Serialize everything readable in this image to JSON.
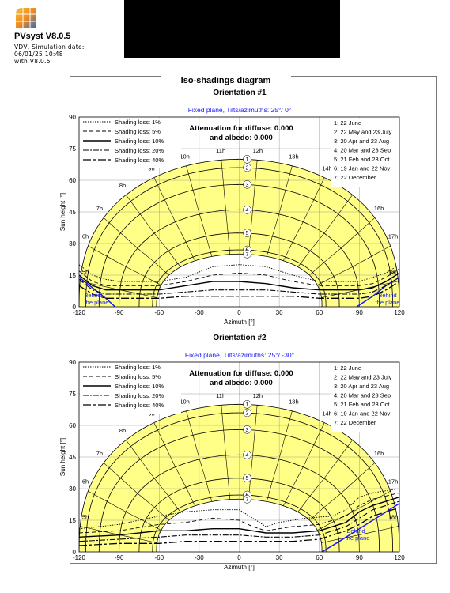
{
  "header": {
    "app_title": "PVsyst V8.0.5",
    "line1": "VDV, Simulation date:",
    "line2": "06/01/25 10:48",
    "line3": "with V8.0.5"
  },
  "page_title": "Iso-shadings diagram",
  "chart_data": [
    {
      "type": "line",
      "title": "Orientation #1",
      "subtitle": "Fixed plane, Tilts/azimuths: 25°/ 0°",
      "attenuation": "Attenuation for diffuse: 0.000",
      "albedo": "and albedo: 0.000",
      "xlabel": "Azimuth [°]",
      "ylabel": "Sun height [°]",
      "xlim": [
        -120,
        120
      ],
      "ylim": [
        0,
        90
      ],
      "xticks": [
        "-120",
        "-90",
        "-60",
        "-30",
        "0",
        "30",
        "60",
        "90",
        "120"
      ],
      "yticks": [
        "0",
        "15",
        "30",
        "45",
        "60",
        "75",
        "90"
      ],
      "behind_label": [
        "Behind",
        "the plane"
      ],
      "hour_labels": [
        "5h",
        "6h",
        "7h",
        "8h",
        "9h",
        "10h",
        "11h",
        "12h",
        "13h",
        "14h",
        "15h",
        "16h",
        "17h",
        "18h"
      ],
      "shading_legend": [
        "Shading loss: 1%",
        "Shading loss: 5%",
        "Shading loss: 10%",
        "Shading loss: 20%",
        "Shading loss: 40%"
      ],
      "date_legend": [
        "1: 22 June",
        "2: 22 May and 23 July",
        "3: 20 Apr and 23 Aug",
        "4: 20 Mar and 23 Sep",
        "5: 21 Feb and 23 Oct",
        "6: 19 Jan and 22 Nov",
        "7: 22 December"
      ],
      "sun_paths": [
        {
          "name": "1",
          "peak": 70,
          "az_set": 120
        },
        {
          "name": "2",
          "peak": 66,
          "az_set": 115
        },
        {
          "name": "3",
          "peak": 58,
          "az_set": 105
        },
        {
          "name": "4",
          "peak": 46,
          "az_set": 90
        },
        {
          "name": "5",
          "peak": 35,
          "az_set": 75
        },
        {
          "name": "6",
          "peak": 27,
          "az_set": 65
        },
        {
          "name": "7",
          "peak": 25,
          "az_set": 62
        }
      ],
      "shading_series": [
        {
          "name": "Shading loss: 1%",
          "points": [
            [
              -120,
              20
            ],
            [
              -110,
              15
            ],
            [
              -100,
              13
            ],
            [
              -90,
              12
            ],
            [
              -60,
              12
            ],
            [
              -40,
              14
            ],
            [
              -20,
              19
            ],
            [
              0,
              20
            ],
            [
              20,
              19
            ],
            [
              40,
              15
            ],
            [
              60,
              12
            ],
            [
              90,
              12
            ],
            [
              100,
              14
            ],
            [
              110,
              16
            ],
            [
              120,
              20
            ]
          ]
        },
        {
          "name": "Shading loss: 5%",
          "points": [
            [
              -120,
              17
            ],
            [
              -110,
              12
            ],
            [
              -100,
              10
            ],
            [
              -90,
              10
            ],
            [
              -60,
              10
            ],
            [
              -40,
              12
            ],
            [
              -20,
              15
            ],
            [
              0,
              16
            ],
            [
              20,
              15
            ],
            [
              40,
              12
            ],
            [
              60,
              10
            ],
            [
              90,
              10
            ],
            [
              100,
              11
            ],
            [
              110,
              14
            ],
            [
              120,
              18
            ]
          ]
        },
        {
          "name": "Shading loss: 10%",
          "points": [
            [
              -120,
              15
            ],
            [
              -110,
              10
            ],
            [
              -100,
              8
            ],
            [
              -90,
              8
            ],
            [
              -60,
              8
            ],
            [
              -40,
              10
            ],
            [
              -20,
              12
            ],
            [
              0,
              12
            ],
            [
              20,
              11
            ],
            [
              40,
              9
            ],
            [
              60,
              8
            ],
            [
              90,
              8
            ],
            [
              100,
              9
            ],
            [
              110,
              12
            ],
            [
              120,
              16
            ]
          ]
        },
        {
          "name": "Shading loss: 20%",
          "points": [
            [
              -120,
              13
            ],
            [
              -110,
              8
            ],
            [
              -100,
              6
            ],
            [
              -90,
              6
            ],
            [
              -60,
              6
            ],
            [
              -40,
              7
            ],
            [
              -20,
              8
            ],
            [
              0,
              8
            ],
            [
              20,
              8
            ],
            [
              40,
              7
            ],
            [
              60,
              6
            ],
            [
              90,
              6
            ],
            [
              100,
              7
            ],
            [
              110,
              10
            ],
            [
              120,
              14
            ]
          ]
        },
        {
          "name": "Shading loss: 40%",
          "points": [
            [
              -120,
              10
            ],
            [
              -110,
              6
            ],
            [
              -100,
              4
            ],
            [
              -90,
              4
            ],
            [
              -60,
              4
            ],
            [
              -40,
              5
            ],
            [
              -20,
              5
            ],
            [
              0,
              5
            ],
            [
              20,
              5
            ],
            [
              40,
              5
            ],
            [
              60,
              4
            ],
            [
              90,
              4
            ],
            [
              100,
              5
            ],
            [
              110,
              8
            ],
            [
              120,
              12
            ]
          ]
        }
      ],
      "plane_boundary": [
        [
          [
            -120,
            14
          ],
          [
            -110,
            9
          ],
          [
            -100,
            4
          ],
          [
            -93,
            0
          ]
        ],
        [
          [
            88,
            0
          ],
          [
            100,
            5
          ],
          [
            110,
            10
          ],
          [
            120,
            14
          ]
        ]
      ]
    },
    {
      "type": "line",
      "title": "Orientation #2",
      "subtitle": "Fixed plane, Tilts/azimuths: 25°/ -30°",
      "attenuation": "Attenuation for diffuse: 0.000",
      "albedo": "and albedo: 0.000",
      "xlabel": "Azimuth [°]",
      "ylabel": "Sun height [°]",
      "xlim": [
        -120,
        120
      ],
      "ylim": [
        0,
        90
      ],
      "xticks": [
        "-120",
        "-90",
        "-60",
        "-30",
        "0",
        "30",
        "60",
        "90",
        "120"
      ],
      "yticks": [
        "0",
        "15",
        "30",
        "45",
        "60",
        "75",
        "90"
      ],
      "behind_label": [
        "Behind",
        "the plane"
      ],
      "hour_labels": [
        "5h",
        "6h",
        "7h",
        "8h",
        "9h",
        "10h",
        "11h",
        "12h",
        "13h",
        "14h",
        "15h",
        "16h",
        "17h",
        "18h"
      ],
      "shading_legend": [
        "Shading loss: 1%",
        "Shading loss: 5%",
        "Shading loss: 10%",
        "Shading loss: 20%",
        "Shading loss: 40%"
      ],
      "date_legend": [
        "1: 22 June",
        "2: 22 May and 23 July",
        "3: 20 Apr and 23 Aug",
        "4: 20 Mar and 23 Sep",
        "5: 21 Feb and 23 Oct",
        "6: 19 Jan and 22 Nov",
        "7: 22 December"
      ],
      "sun_paths": [
        {
          "name": "1",
          "peak": 70,
          "az_set": 120
        },
        {
          "name": "2",
          "peak": 66,
          "az_set": 115
        },
        {
          "name": "3",
          "peak": 58,
          "az_set": 105
        },
        {
          "name": "4",
          "peak": 46,
          "az_set": 90
        },
        {
          "name": "5",
          "peak": 35,
          "az_set": 75
        },
        {
          "name": "6",
          "peak": 27,
          "az_set": 65
        },
        {
          "name": "7",
          "peak": 25,
          "az_set": 62
        }
      ],
      "shading_series": [
        {
          "name": "Shading loss: 1%",
          "points": [
            [
              -120,
              11
            ],
            [
              -90,
              13
            ],
            [
              -60,
              17
            ],
            [
              -40,
              19
            ],
            [
              -20,
              20
            ],
            [
              0,
              20
            ],
            [
              10,
              16
            ],
            [
              20,
              12
            ],
            [
              30,
              14
            ],
            [
              50,
              16
            ],
            [
              70,
              17
            ],
            [
              80,
              20
            ],
            [
              90,
              26
            ],
            [
              100,
              28
            ],
            [
              120,
              30
            ]
          ]
        },
        {
          "name": "Shading loss: 5%",
          "points": [
            [
              -120,
              9
            ],
            [
              -90,
              10
            ],
            [
              -60,
              13
            ],
            [
              -40,
              14
            ],
            [
              -20,
              16
            ],
            [
              0,
              15
            ],
            [
              10,
              12
            ],
            [
              20,
              10
            ],
            [
              40,
              12
            ],
            [
              60,
              13
            ],
            [
              80,
              17
            ],
            [
              90,
              22
            ],
            [
              100,
              25
            ],
            [
              120,
              28
            ]
          ]
        },
        {
          "name": "Shading loss: 10%",
          "points": [
            [
              -120,
              7
            ],
            [
              -90,
              8
            ],
            [
              -60,
              10
            ],
            [
              -40,
              10
            ],
            [
              -20,
              11
            ],
            [
              0,
              11
            ],
            [
              20,
              9
            ],
            [
              40,
              9
            ],
            [
              60,
              10
            ],
            [
              80,
              14
            ],
            [
              90,
              19
            ],
            [
              100,
              22
            ],
            [
              120,
              26
            ]
          ]
        },
        {
          "name": "Shading loss: 20%",
          "points": [
            [
              -120,
              5
            ],
            [
              -90,
              6
            ],
            [
              -60,
              7
            ],
            [
              -40,
              8
            ],
            [
              -20,
              8
            ],
            [
              0,
              8
            ],
            [
              20,
              7
            ],
            [
              40,
              7
            ],
            [
              60,
              8
            ],
            [
              80,
              12
            ],
            [
              90,
              16
            ],
            [
              100,
              20
            ],
            [
              120,
              24
            ]
          ]
        },
        {
          "name": "Shading loss: 40%",
          "points": [
            [
              -120,
              3
            ],
            [
              -90,
              4
            ],
            [
              -60,
              4
            ],
            [
              -40,
              5
            ],
            [
              -20,
              5
            ],
            [
              0,
              5
            ],
            [
              20,
              5
            ],
            [
              40,
              5
            ],
            [
              60,
              6
            ],
            [
              80,
              10
            ],
            [
              90,
              13
            ],
            [
              100,
              17
            ],
            [
              120,
              21
            ]
          ]
        }
      ],
      "plane_boundary": [
        [
          [
            62,
            0
          ],
          [
            75,
            5
          ],
          [
            90,
            11
          ],
          [
            105,
            17
          ],
          [
            120,
            23
          ]
        ]
      ]
    }
  ]
}
